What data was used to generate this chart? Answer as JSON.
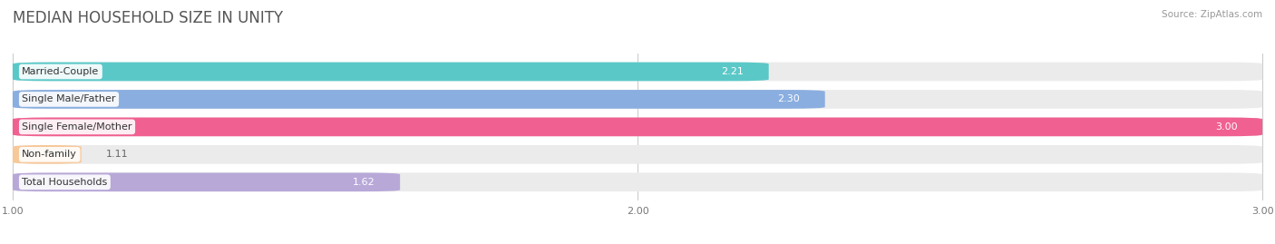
{
  "title": "MEDIAN HOUSEHOLD SIZE IN UNITY",
  "source": "Source: ZipAtlas.com",
  "categories": [
    "Married-Couple",
    "Single Male/Father",
    "Single Female/Mother",
    "Non-family",
    "Total Households"
  ],
  "values": [
    2.21,
    2.3,
    3.0,
    1.11,
    1.62
  ],
  "colors": [
    "#5bc8c8",
    "#8aaee0",
    "#f06090",
    "#f7c899",
    "#b8a8d8"
  ],
  "x_min": 1.0,
  "x_max": 3.0,
  "x_ticks": [
    1.0,
    2.0,
    3.0
  ],
  "bar_height": 0.68,
  "background_color": "#ffffff",
  "bar_bg_color": "#ebebeb",
  "title_fontsize": 12,
  "label_fontsize": 8,
  "value_fontsize": 8,
  "tick_fontsize": 8
}
